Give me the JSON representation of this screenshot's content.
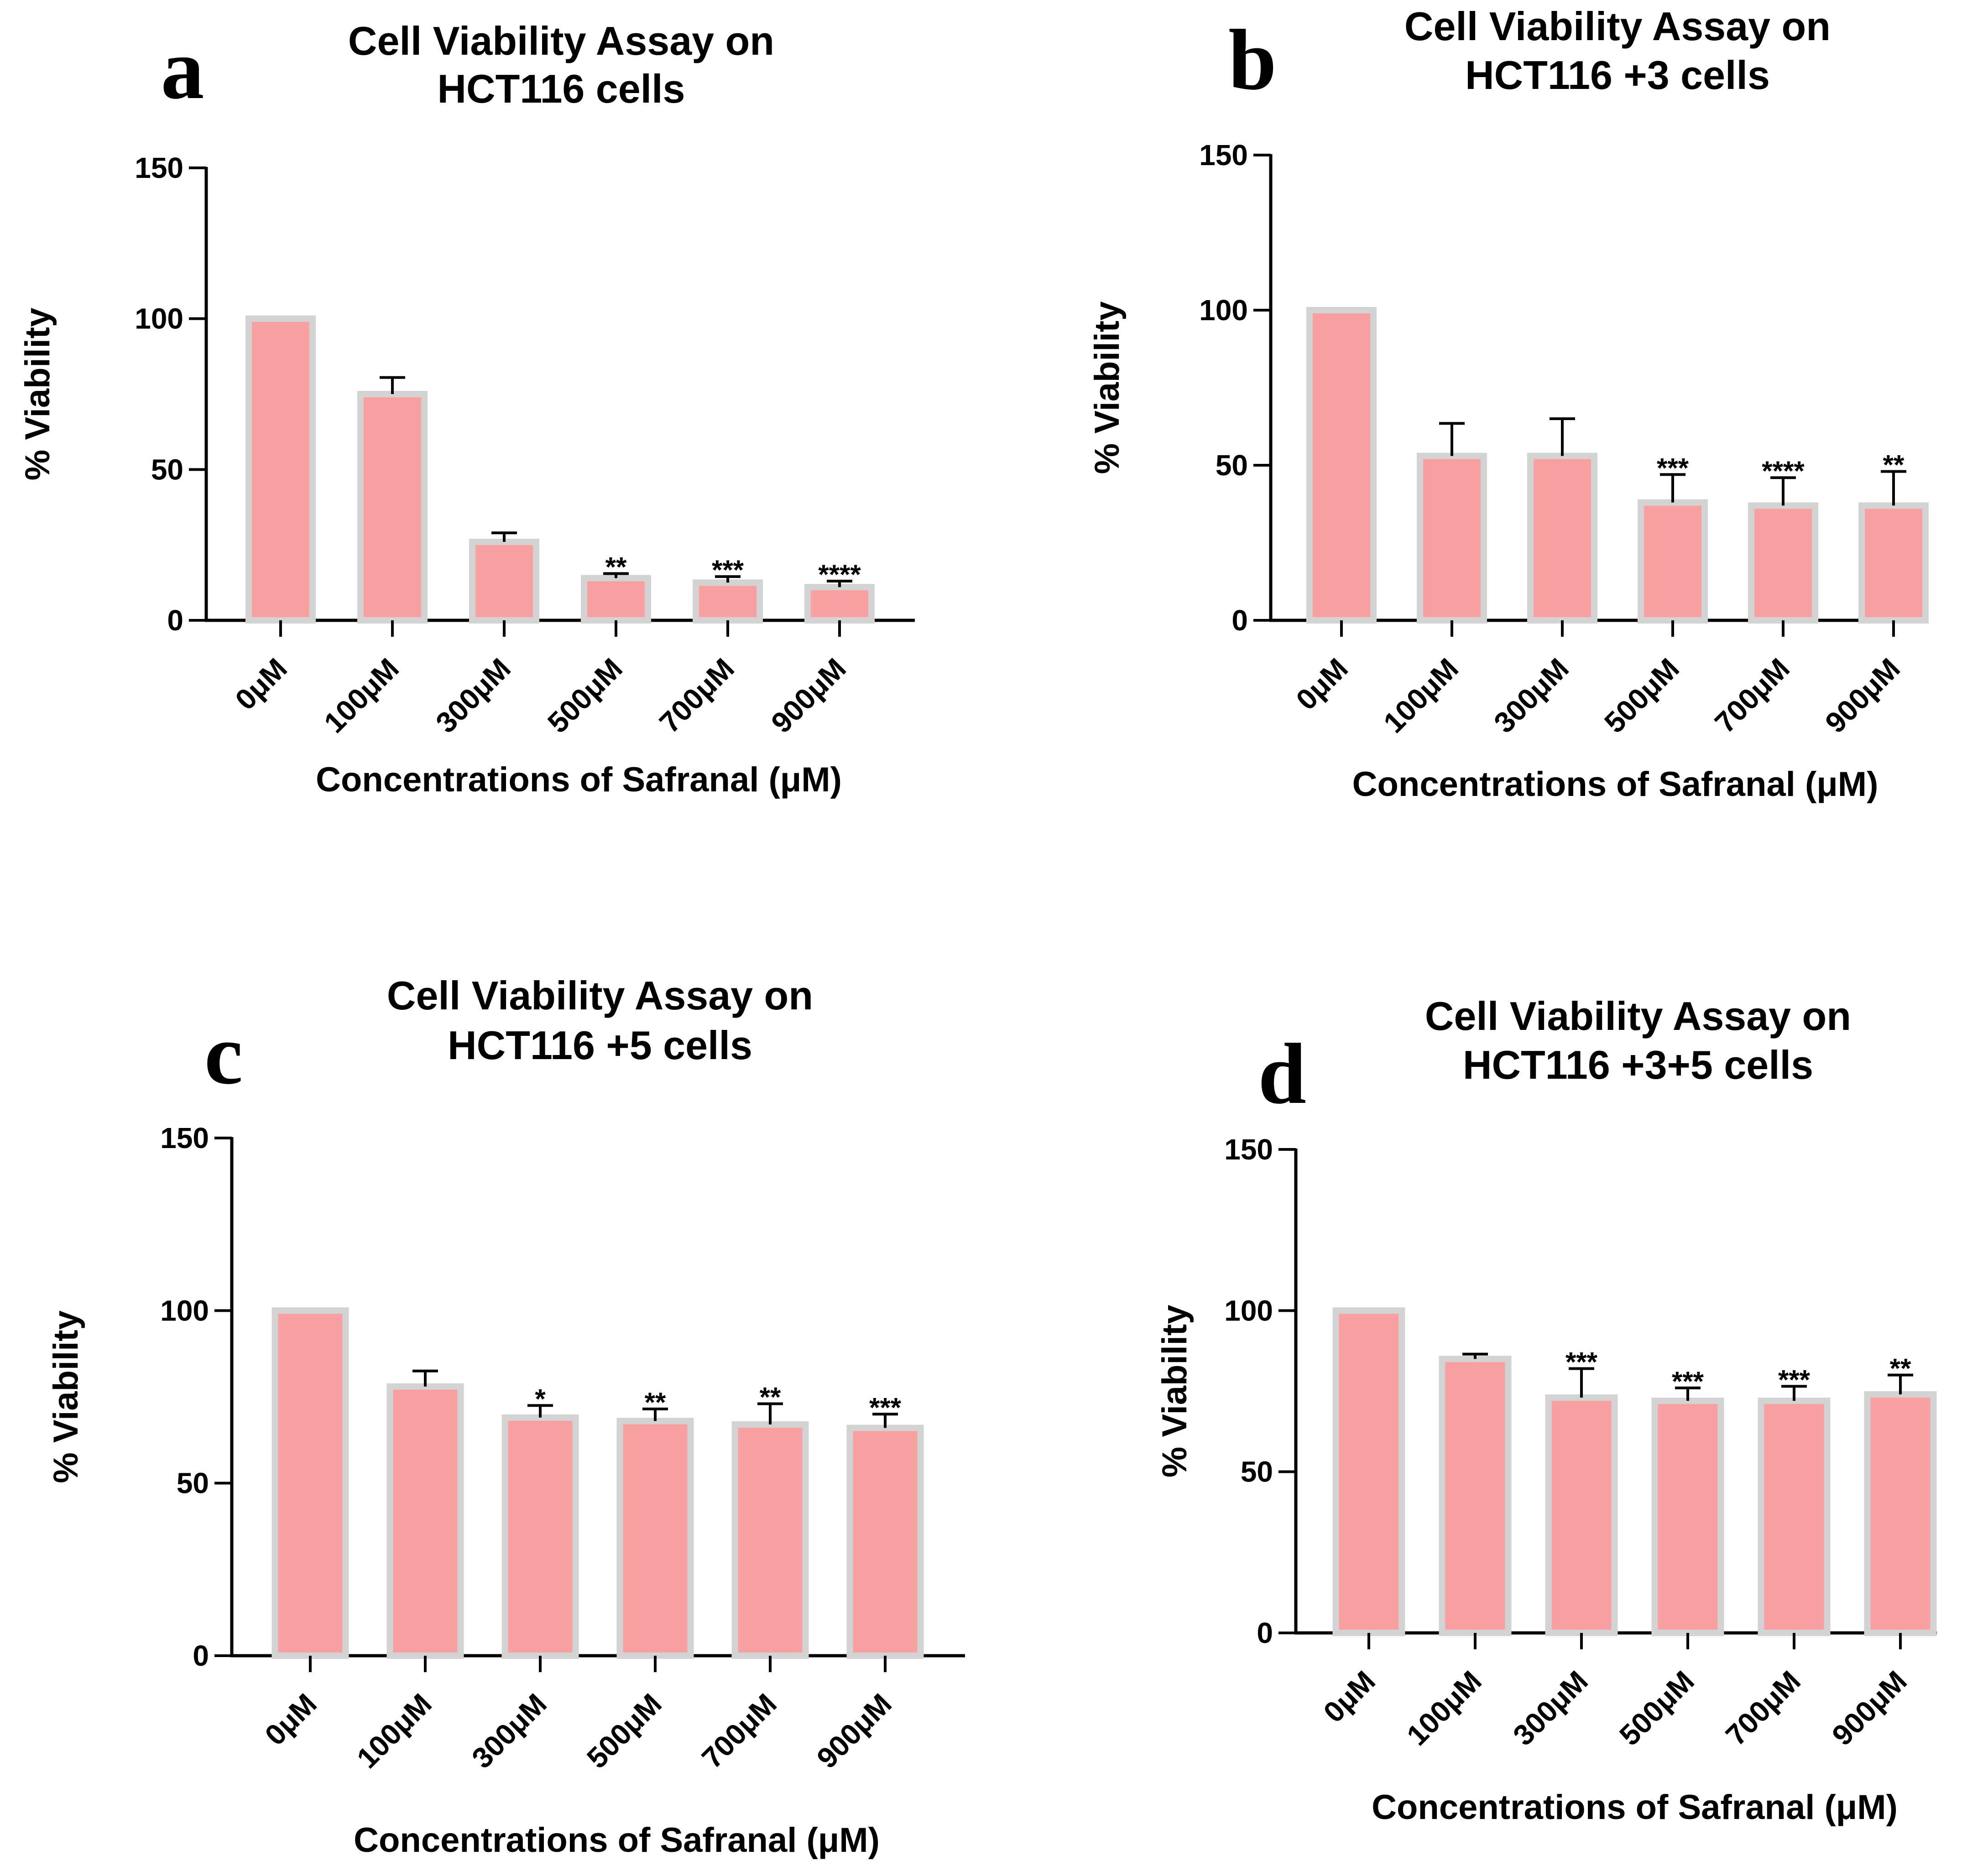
{
  "chart_data": [
    {
      "type": "bar",
      "panel_label": "a",
      "title_lines": [
        "Cell Viability Assay on",
        "HCT116 cells"
      ],
      "xlabel": "Concentrations of Safranal (μM)",
      "ylabel": "% Viability",
      "ylim": [
        0,
        150
      ],
      "yticks": [
        "0",
        "50",
        "100",
        "150"
      ],
      "categories": [
        "0μM",
        "100μM",
        "300μM",
        "500μM",
        "700μM",
        "900μM"
      ],
      "values": [
        100,
        75,
        26,
        14,
        12.5,
        11
      ],
      "errors": [
        0,
        5.5,
        3,
        1.5,
        2,
        2
      ],
      "significance": [
        "",
        "",
        "",
        "**",
        "***",
        "****"
      ]
    },
    {
      "type": "bar",
      "panel_label": "b",
      "title_lines": [
        "Cell Viability Assay on",
        "HCT116 +3 cells"
      ],
      "xlabel": "Concentrations of Safranal (μM)",
      "ylabel": "% Viability",
      "ylim": [
        0,
        150
      ],
      "yticks": [
        "0",
        "50",
        "100",
        "150"
      ],
      "categories": [
        "0μM",
        "100μM",
        "300μM",
        "500μM",
        "700μM",
        "900μM"
      ],
      "values": [
        100,
        53,
        53,
        38,
        37,
        37
      ],
      "errors": [
        0,
        10.5,
        12,
        9,
        9,
        11
      ],
      "significance": [
        "",
        "",
        "",
        "***",
        "****",
        "**"
      ]
    },
    {
      "type": "bar",
      "panel_label": "c",
      "title_lines": [
        "Cell Viability Assay on",
        "HCT116 +5 cells"
      ],
      "xlabel": "Concentrations of Safranal (μM)",
      "ylabel": "% Viability",
      "ylim": [
        0,
        150
      ],
      "yticks": [
        "0",
        "50",
        "100",
        "150"
      ],
      "categories": [
        "0μM",
        "100μM",
        "300μM",
        "500μM",
        "700μM",
        "900μM"
      ],
      "values": [
        100,
        78,
        69,
        68,
        67,
        66
      ],
      "errors": [
        0,
        4.5,
        3.5,
        3.5,
        6,
        4
      ],
      "significance": [
        "",
        "",
        "*",
        "**",
        "**",
        "***"
      ]
    },
    {
      "type": "bar",
      "panel_label": "d",
      "title_lines": [
        "Cell Viability Assay on",
        "HCT116 +3+5 cells"
      ],
      "xlabel": "Concentrations of Safranal (μM)",
      "ylabel": "% Viability",
      "ylim": [
        0,
        150
      ],
      "yticks": [
        "0",
        "50",
        "100",
        "150"
      ],
      "categories": [
        "0μM",
        "100μM",
        "300μM",
        "500μM",
        "700μM",
        "900μM"
      ],
      "values": [
        100,
        85,
        73,
        72,
        72,
        74
      ],
      "errors": [
        0,
        1.5,
        9,
        4,
        4.5,
        6
      ],
      "significance": [
        "",
        "",
        "***",
        "***",
        "***",
        "**"
      ]
    }
  ],
  "colors": {
    "bar_fill": "#f9a0a3",
    "bar_border": "#d3d3d3",
    "axis": "#000000"
  }
}
